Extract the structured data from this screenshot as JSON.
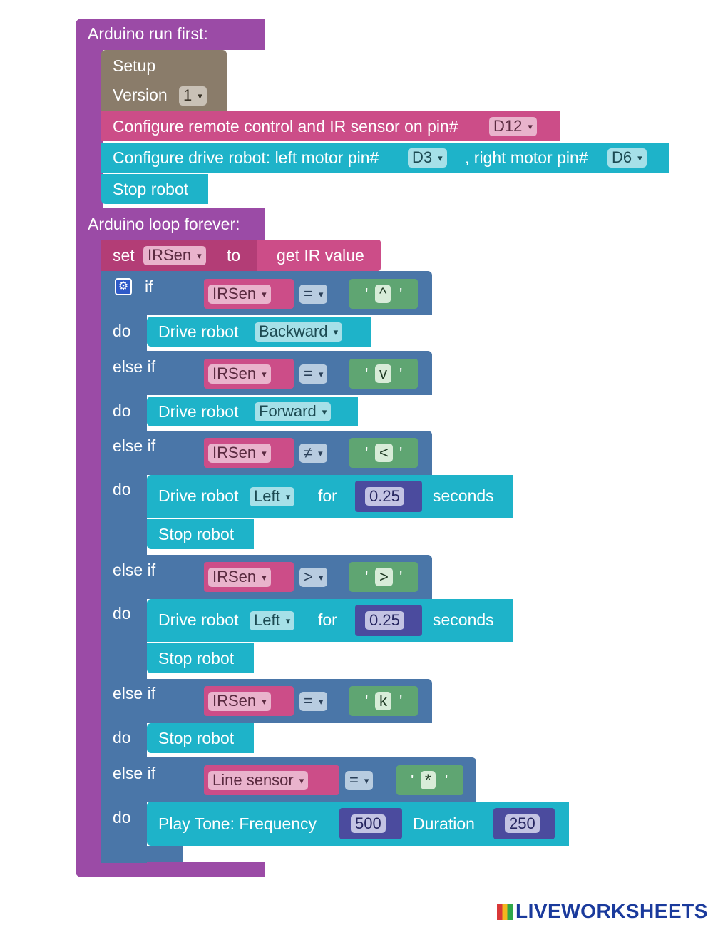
{
  "run_first": {
    "label": "Arduino run first:",
    "setup_label": "Setup",
    "version_label": "Version",
    "version_value": "1",
    "configure_ir_label": "Configure remote control and IR sensor on pin#",
    "ir_pin": "D12",
    "configure_drive_label": "Configure drive robot: left motor pin#",
    "left_motor_pin": "D3",
    "right_motor_label": ", right motor pin#",
    "right_motor_pin": "D6",
    "stop_robot": "Stop robot"
  },
  "loop": {
    "label": "Arduino loop forever:",
    "set_label": "set",
    "set_variable": "IRSen",
    "to_label": "to",
    "get_ir_label": "get IR value",
    "if_label": "if",
    "else_if_label": "else if",
    "do_label": "do",
    "for_label": "for",
    "seconds_label": "seconds",
    "stop_robot": "Stop robot",
    "drive_robot_label": "Drive robot",
    "branches": [
      {
        "var": "IRSen",
        "op": "=",
        "value": "^",
        "direction": "Backward"
      },
      {
        "var": "IRSen",
        "op": "=",
        "value": "v",
        "direction": "Forward"
      },
      {
        "var": "IRSen",
        "op": "≠",
        "value": "<",
        "direction": "Left",
        "duration": "0.25"
      },
      {
        "var": "IRSen",
        "op": ">",
        "value": ">",
        "direction": "Left",
        "duration": "0.25"
      },
      {
        "var": "IRSen",
        "op": "=",
        "value": "k"
      },
      {
        "var": "Line sensor",
        "op": "=",
        "value": "*"
      }
    ],
    "play_tone_label": "Play Tone: Frequency",
    "frequency": "500",
    "duration_label": "Duration",
    "duration": "250"
  },
  "quote": "'",
  "caret": "▾",
  "gear_icon": "⚙",
  "footer": {
    "brand": "LIVEWORKSHEETS"
  },
  "colors": {
    "event": "#9b4ba6",
    "setup": "#8a7c6a",
    "ir": "#cc4d88",
    "drive": "#1eb3c9",
    "logic": "#4a76a8",
    "text": "#5fa572",
    "number": "#4b4b9e"
  }
}
